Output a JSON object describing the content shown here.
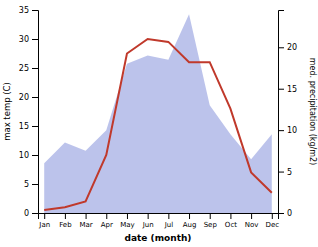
{
  "chart_data": {
    "type": "line",
    "categories": [
      "Jan",
      "Feb",
      "Mar",
      "Apr",
      "May",
      "Jun",
      "Jul",
      "Aug",
      "Sep",
      "Oct",
      "Nov",
      "Dec"
    ],
    "series": [
      {
        "type": "area",
        "color": "#b0b8e8",
        "axis": "y2",
        "values": [
          6.0,
          8.5,
          7.5,
          10.0,
          18.0,
          19.0,
          18.5,
          24.0,
          13.0,
          9.5,
          6.5,
          9.5
        ]
      },
      {
        "type": "line",
        "color": "#c0392b",
        "values": [
          0.5,
          1.0,
          2.0,
          10.0,
          27.5,
          30.0,
          29.5,
          26.0,
          26.0,
          18.0,
          7.0,
          3.5
        ]
      }
    ],
    "ylim": [
      0,
      35
    ],
    "yticks": [
      0,
      5,
      10,
      15,
      20,
      25,
      30,
      35
    ],
    "y2lim": [
      0,
      24.5
    ],
    "y2ticks": [
      0,
      5,
      10,
      15,
      20
    ],
    "xlabel": "date (month)",
    "ylabel": "max temp (C)",
    "y2label": "med. precipitation (kg/m2)",
    "grid": false
  }
}
